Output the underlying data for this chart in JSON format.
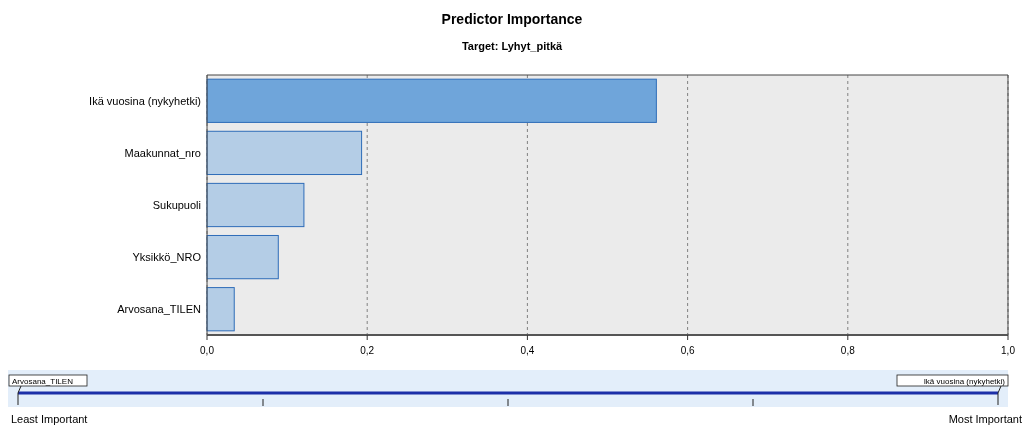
{
  "chart_data": {
    "type": "bar",
    "orientation": "horizontal",
    "title": "Predictor Importance",
    "subtitle": "Target: Lyhyt_pitkä",
    "categories": [
      "Ikä vuosina (nykyhetki)",
      "Maakunnat_nro",
      "Sukupuoli",
      "Yksikkö_NRO",
      "Arvosana_TILEN"
    ],
    "values": [
      0.561,
      0.193,
      0.121,
      0.089,
      0.034
    ],
    "colors": [
      "#6fa5da",
      "#b4cde6",
      "#b4cde6",
      "#b4cde6",
      "#b4cde6"
    ],
    "xlim": [
      0,
      1
    ],
    "xticks": [
      {
        "value": 0,
        "label": "0,0"
      },
      {
        "value": 0.2,
        "label": "0,2"
      },
      {
        "value": 0.4,
        "label": "0,4"
      },
      {
        "value": 0.6,
        "label": "0,6"
      },
      {
        "value": 0.8,
        "label": "0,8"
      },
      {
        "value": 1,
        "label": "1,0"
      }
    ],
    "grid": "x",
    "annotations": [
      "Arvosana_TILEN",
      "Ikä vuosina (nykyhetki)",
      "Least Important",
      "Most Important"
    ]
  }
}
